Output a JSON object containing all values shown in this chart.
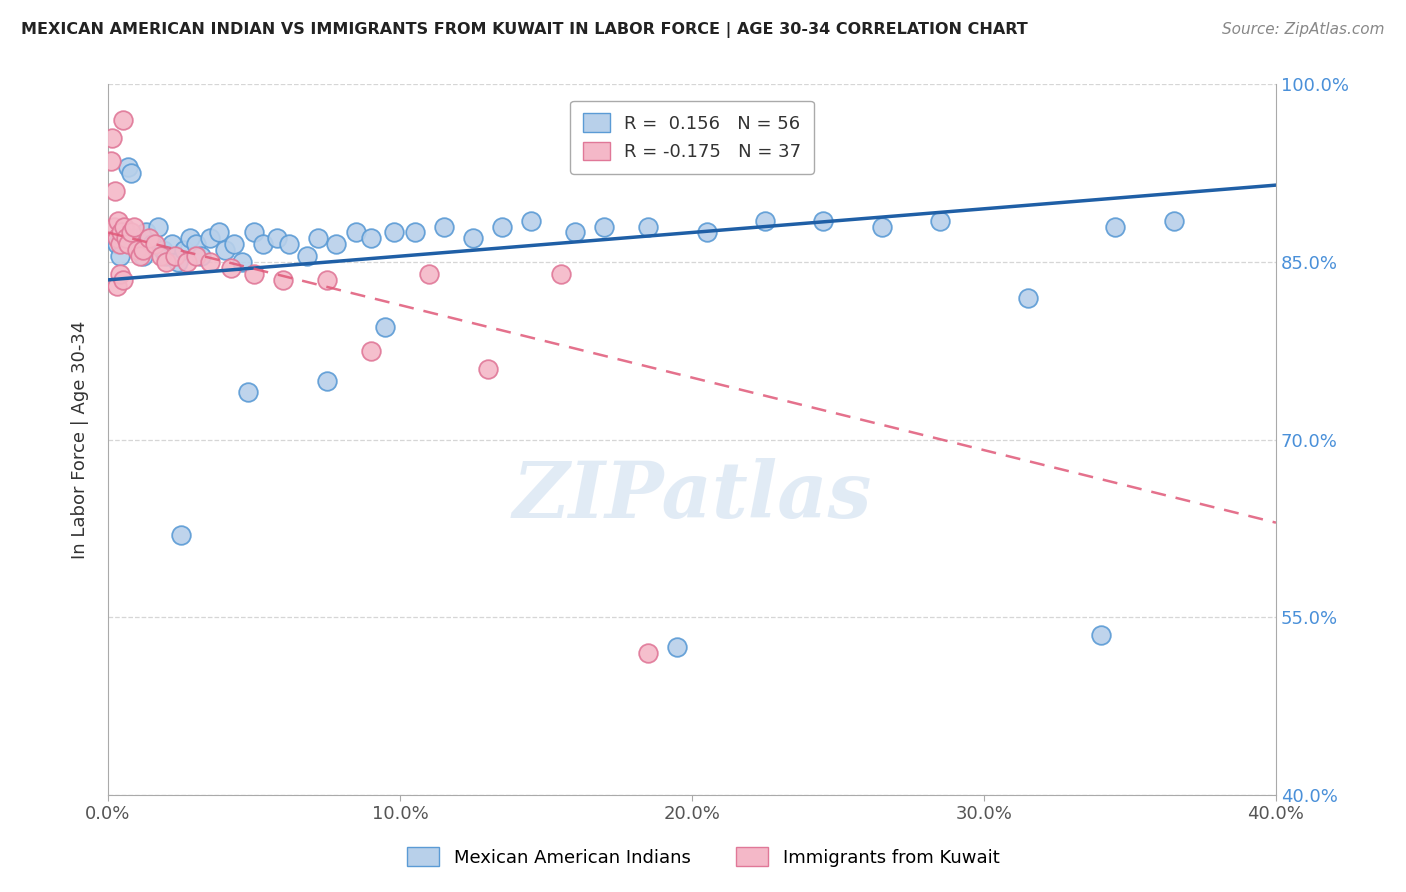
{
  "title": "MEXICAN AMERICAN INDIAN VS IMMIGRANTS FROM KUWAIT IN LABOR FORCE | AGE 30-34 CORRELATION CHART",
  "source": "Source: ZipAtlas.com",
  "ylabel": "In Labor Force | Age 30-34",
  "xlim": [
    0.0,
    40.0
  ],
  "ylim": [
    40.0,
    100.0
  ],
  "xticks": [
    0.0,
    10.0,
    20.0,
    30.0,
    40.0
  ],
  "yticks": [
    40.0,
    55.0,
    70.0,
    85.0,
    100.0
  ],
  "blue_R": 0.156,
  "blue_N": 56,
  "pink_R": -0.175,
  "pink_N": 37,
  "blue_label": "Mexican American Indians",
  "pink_label": "Immigrants from Kuwait",
  "watermark": "ZIPatlas",
  "blue_color": "#b8d0ea",
  "blue_edge": "#5b9bd5",
  "pink_color": "#f4b8c8",
  "pink_edge": "#e07898",
  "blue_line_color": "#1f5fa6",
  "pink_line_color": "#e05878",
  "blue_line_y0": 83.5,
  "blue_line_y1": 91.5,
  "pink_line_y0": 87.5,
  "pink_line_y1": 63.0,
  "blue_scatter_x": [
    0.3,
    0.4,
    0.5,
    0.7,
    0.8,
    1.0,
    1.1,
    1.2,
    1.3,
    1.5,
    1.7,
    1.9,
    2.0,
    2.2,
    2.4,
    2.6,
    2.8,
    3.0,
    3.2,
    3.5,
    3.8,
    4.0,
    4.3,
    4.6,
    5.0,
    5.3,
    5.8,
    6.2,
    6.8,
    7.2,
    7.8,
    8.5,
    9.0,
    9.8,
    10.5,
    11.5,
    12.5,
    13.5,
    14.5,
    16.0,
    17.0,
    18.5,
    20.5,
    22.5,
    24.5,
    26.5,
    28.5,
    31.5,
    34.5,
    36.5,
    2.5,
    4.8,
    7.5,
    9.5,
    19.5,
    34.0
  ],
  "blue_scatter_y": [
    86.5,
    85.5,
    87.0,
    93.0,
    92.5,
    87.0,
    86.0,
    85.5,
    87.5,
    86.5,
    88.0,
    86.0,
    85.5,
    86.5,
    85.0,
    86.0,
    87.0,
    86.5,
    85.5,
    87.0,
    87.5,
    86.0,
    86.5,
    85.0,
    87.5,
    86.5,
    87.0,
    86.5,
    85.5,
    87.0,
    86.5,
    87.5,
    87.0,
    87.5,
    87.5,
    88.0,
    87.0,
    88.0,
    88.5,
    87.5,
    88.0,
    88.0,
    87.5,
    88.5,
    88.5,
    88.0,
    88.5,
    82.0,
    88.0,
    88.5,
    62.0,
    74.0,
    75.0,
    79.5,
    52.5,
    53.5
  ],
  "pink_scatter_x": [
    0.1,
    0.15,
    0.2,
    0.25,
    0.3,
    0.35,
    0.4,
    0.45,
    0.5,
    0.55,
    0.6,
    0.7,
    0.8,
    0.9,
    1.0,
    1.1,
    1.2,
    1.4,
    1.6,
    1.8,
    2.0,
    2.3,
    2.7,
    3.0,
    3.5,
    4.2,
    5.0,
    6.0,
    7.5,
    9.0,
    11.0,
    13.0,
    15.5,
    18.5,
    0.3,
    0.4,
    0.5
  ],
  "pink_scatter_y": [
    93.5,
    95.5,
    88.0,
    91.0,
    87.0,
    88.5,
    86.5,
    87.5,
    97.0,
    88.0,
    87.0,
    86.5,
    87.5,
    88.0,
    86.0,
    85.5,
    86.0,
    87.0,
    86.5,
    85.5,
    85.0,
    85.5,
    85.0,
    85.5,
    85.0,
    84.5,
    84.0,
    83.5,
    83.5,
    77.5,
    84.0,
    76.0,
    84.0,
    52.0,
    83.0,
    84.0,
    83.5
  ]
}
